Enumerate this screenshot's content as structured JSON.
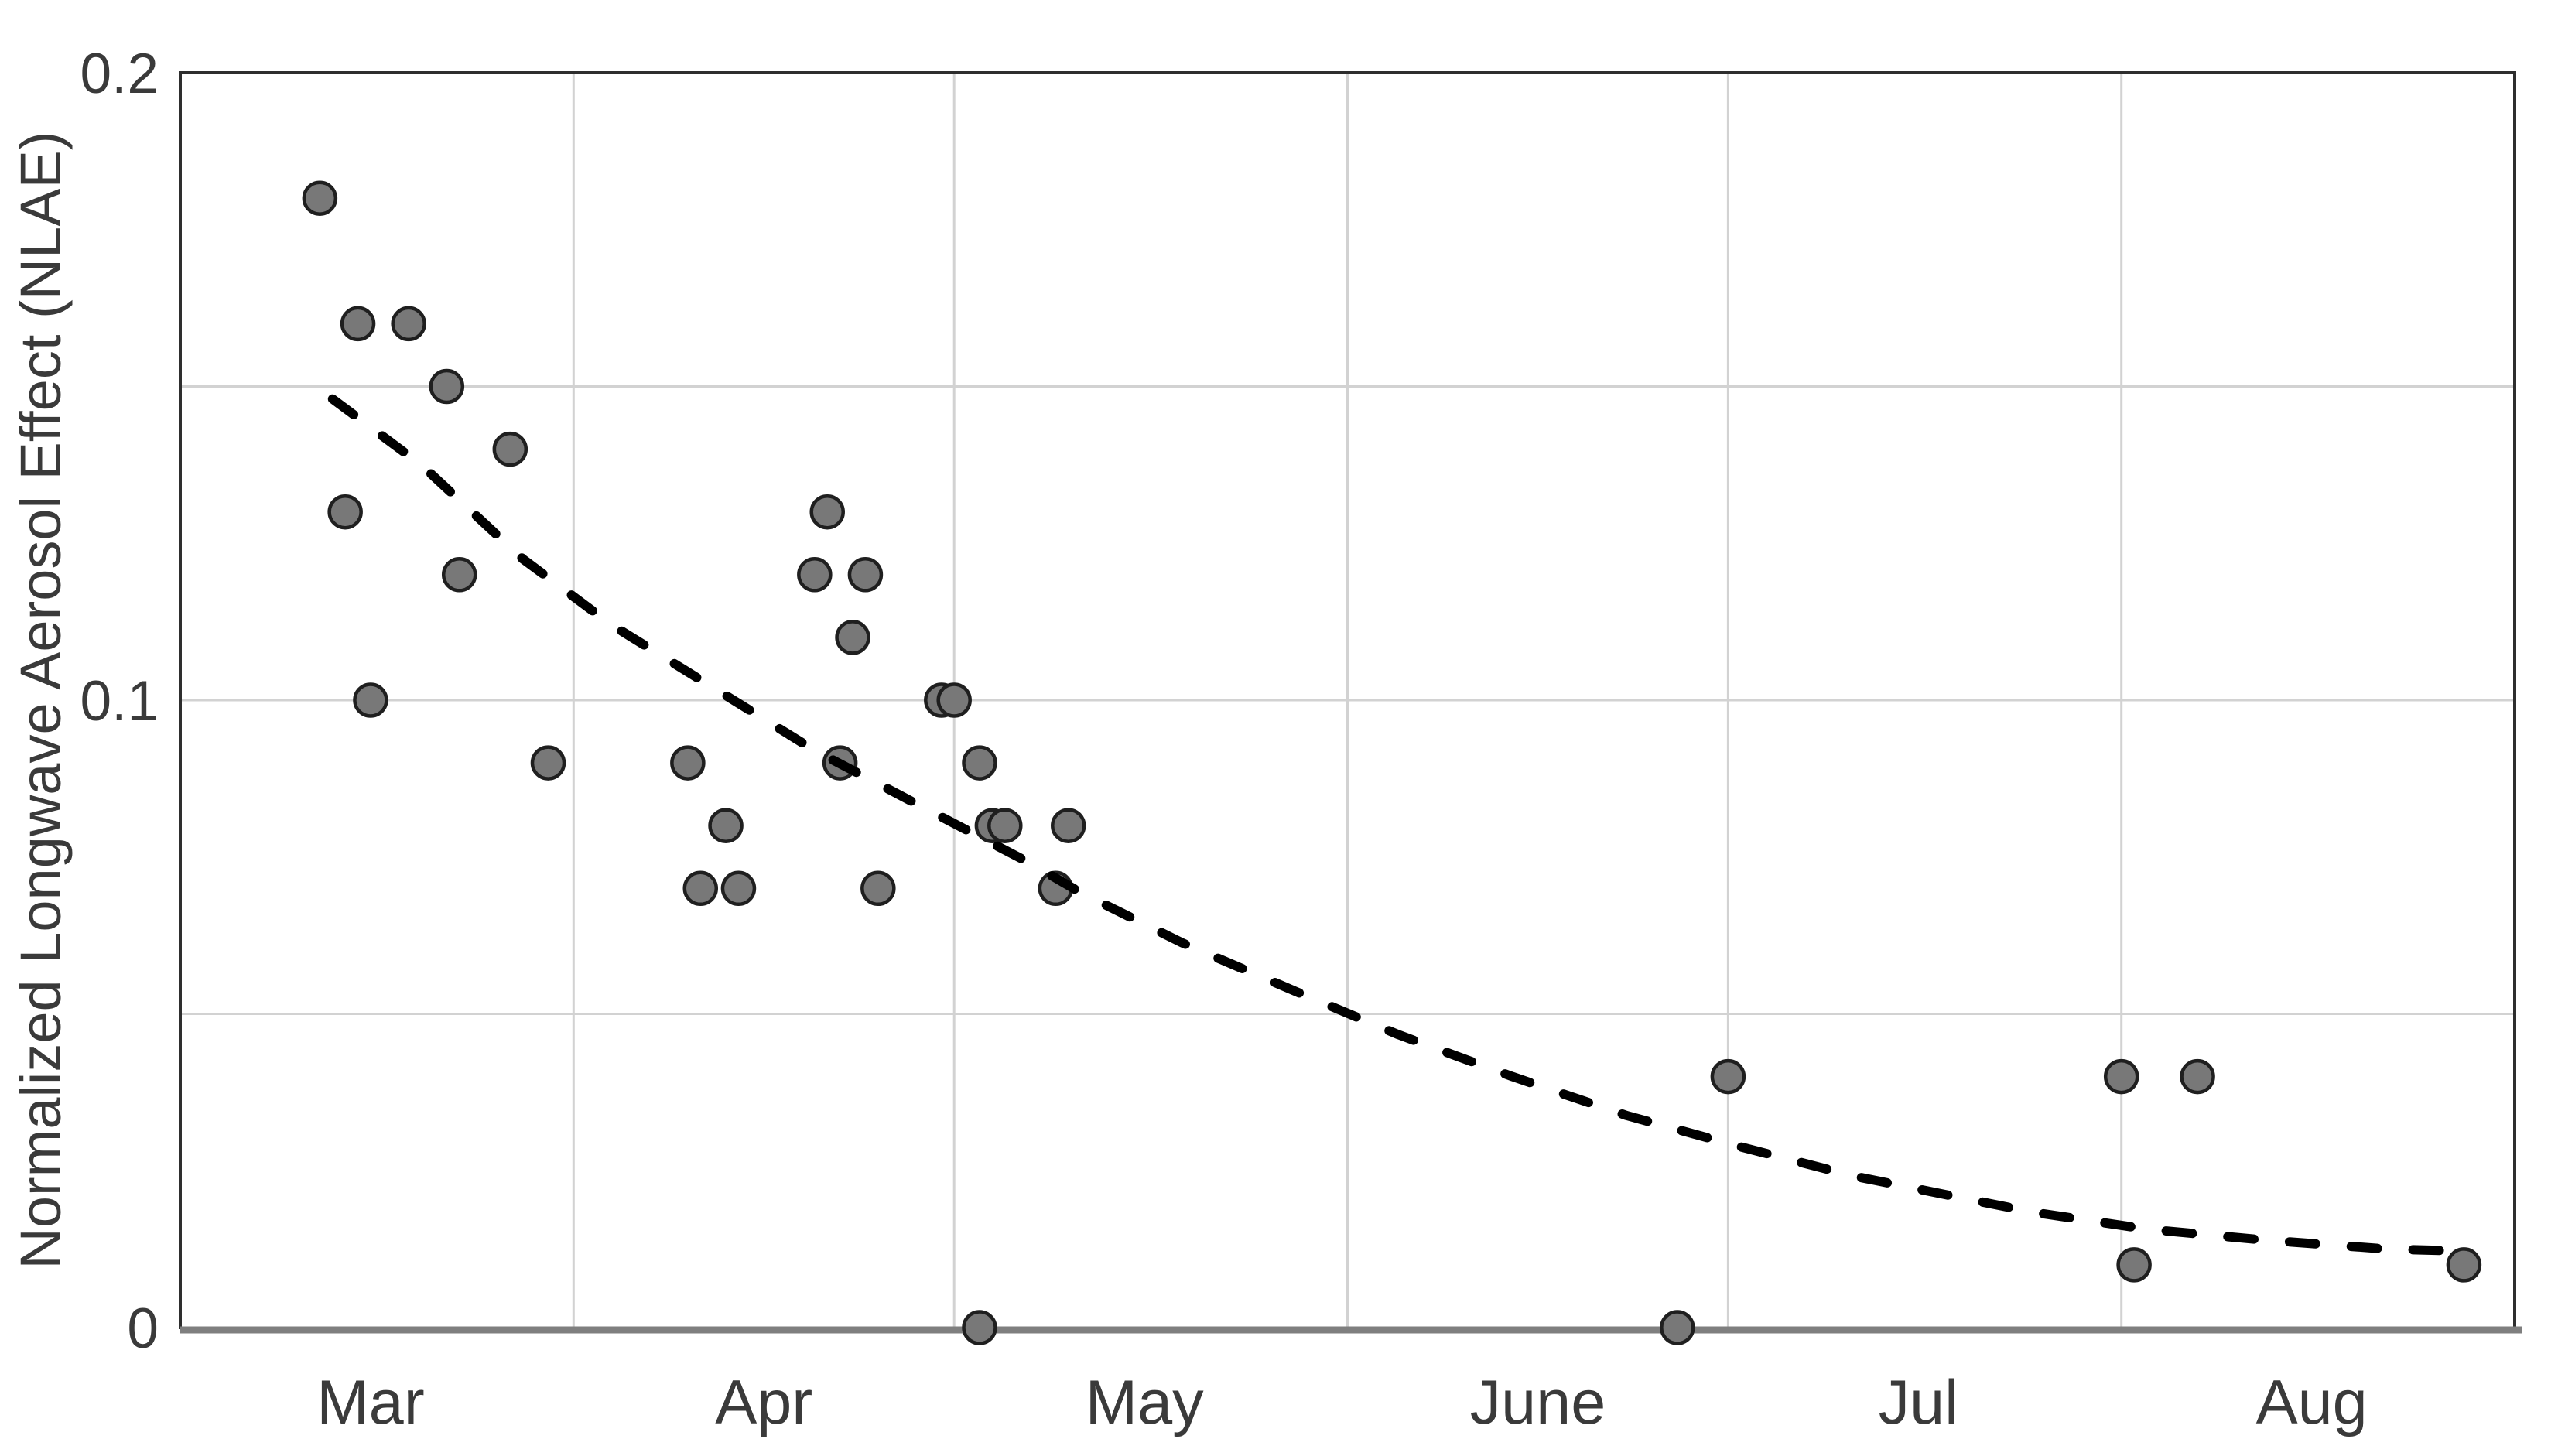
{
  "figure": {
    "description": "Scatter plot of Normalized Longwave Aerosol Effect (NLAE) versus date with dashed exponential-decay trend line",
    "background": "#ffffff"
  },
  "style": {
    "point_fill": "#787878",
    "point_stroke": "#1f1f1f",
    "grid_color": "#d2d2d2",
    "frame_color": "#2e2e2e",
    "baseline_color": "#7f7f7f",
    "text_color": "#3a3a3a",
    "trend_color": "#000000",
    "background": "#ffffff"
  },
  "chart_data": {
    "type": "scatter",
    "title": "",
    "xlabel": "",
    "ylabel": "Normalized Longwave Aerosol Effect (NLAE)",
    "ylim": [
      0,
      0.2
    ],
    "xlim_dates": [
      "Mar 1",
      "Sep 1"
    ],
    "grid": true,
    "legend_position": "none",
    "y_ticks": [
      {
        "value": 0,
        "label": "0"
      },
      {
        "value": 0.1,
        "label": "0.1"
      },
      {
        "value": 0.2,
        "label": "0.2"
      }
    ],
    "y_gridlines": [
      0.05,
      0.1,
      0.15
    ],
    "x_gridline_dates": [
      "Apr 1",
      "May 1",
      "Jun 1",
      "Jul 1",
      "Aug 1"
    ],
    "x_month_labels": [
      {
        "date": "Mar 16",
        "label": "Mar"
      },
      {
        "date": "Apr 16",
        "label": "Apr"
      },
      {
        "date": "May 16",
        "label": "May"
      },
      {
        "date": "Jun 16",
        "label": "June"
      },
      {
        "date": "Jul 16",
        "label": "Jul"
      },
      {
        "date": "Aug 16",
        "label": "Aug"
      }
    ],
    "points": [
      {
        "date": "Mar 12",
        "value": 0.18
      },
      {
        "date": "Mar 14",
        "value": 0.13
      },
      {
        "date": "Mar 15",
        "value": 0.16
      },
      {
        "date": "Mar 16",
        "value": 0.1
      },
      {
        "date": "Mar 19",
        "value": 0.16
      },
      {
        "date": "Mar 22",
        "value": 0.15
      },
      {
        "date": "Mar 23",
        "value": 0.12
      },
      {
        "date": "Mar 27",
        "value": 0.14
      },
      {
        "date": "Mar 30",
        "value": 0.09
      },
      {
        "date": "Apr 10",
        "value": 0.09
      },
      {
        "date": "Apr 11",
        "value": 0.07
      },
      {
        "date": "Apr 13",
        "value": 0.08
      },
      {
        "date": "Apr 14",
        "value": 0.07
      },
      {
        "date": "Apr 20",
        "value": 0.12
      },
      {
        "date": "Apr 21",
        "value": 0.13
      },
      {
        "date": "Apr 22",
        "value": 0.09
      },
      {
        "date": "Apr 23",
        "value": 0.11
      },
      {
        "date": "Apr 24",
        "value": 0.12
      },
      {
        "date": "Apr 25",
        "value": 0.07
      },
      {
        "date": "Apr 30",
        "value": 0.1
      },
      {
        "date": "May 1",
        "value": 0.1
      },
      {
        "date": "May 3",
        "value": 0.09
      },
      {
        "date": "May 3",
        "value": 0.0
      },
      {
        "date": "May 4",
        "value": 0.08
      },
      {
        "date": "May 5",
        "value": 0.08
      },
      {
        "date": "May 9",
        "value": 0.07
      },
      {
        "date": "May 10",
        "value": 0.08
      },
      {
        "date": "Jun 27",
        "value": 0.0
      },
      {
        "date": "Jul 1",
        "value": 0.04
      },
      {
        "date": "Aug 1",
        "value": 0.04
      },
      {
        "date": "Aug 2",
        "value": 0.01
      },
      {
        "date": "Aug 7",
        "value": 0.04
      },
      {
        "date": "Aug 28",
        "value": 0.01
      }
    ],
    "trend": {
      "style": "dashed",
      "fit": "exponential-decay",
      "samples": [
        {
          "date": "Mar 13",
          "value": 0.148
        },
        {
          "date": "Mar 20",
          "value": 0.1375
        },
        {
          "date": "Mar 28",
          "value": 0.1225
        },
        {
          "date": "Apr 4",
          "value": 0.112
        },
        {
          "date": "Apr 12",
          "value": 0.102
        },
        {
          "date": "Apr 20",
          "value": 0.092
        },
        {
          "date": "Apr 28",
          "value": 0.0835
        },
        {
          "date": "May 7",
          "value": 0.074
        },
        {
          "date": "May 11",
          "value": 0.0693
        },
        {
          "date": "May 19",
          "value": 0.0613
        },
        {
          "date": "May 28",
          "value": 0.0535
        },
        {
          "date": "Jun 5",
          "value": 0.0467
        },
        {
          "date": "Jun 14",
          "value": 0.04
        },
        {
          "date": "Jun 23",
          "value": 0.0338
        },
        {
          "date": "Jul 2",
          "value": 0.0288
        },
        {
          "date": "Jul 11",
          "value": 0.0241
        },
        {
          "date": "Jul 25",
          "value": 0.0184
        },
        {
          "date": "Aug 3",
          "value": 0.0157
        },
        {
          "date": "Aug 12",
          "value": 0.014
        },
        {
          "date": "Aug 22",
          "value": 0.0125
        },
        {
          "date": "Aug 28",
          "value": 0.0122
        }
      ]
    }
  }
}
